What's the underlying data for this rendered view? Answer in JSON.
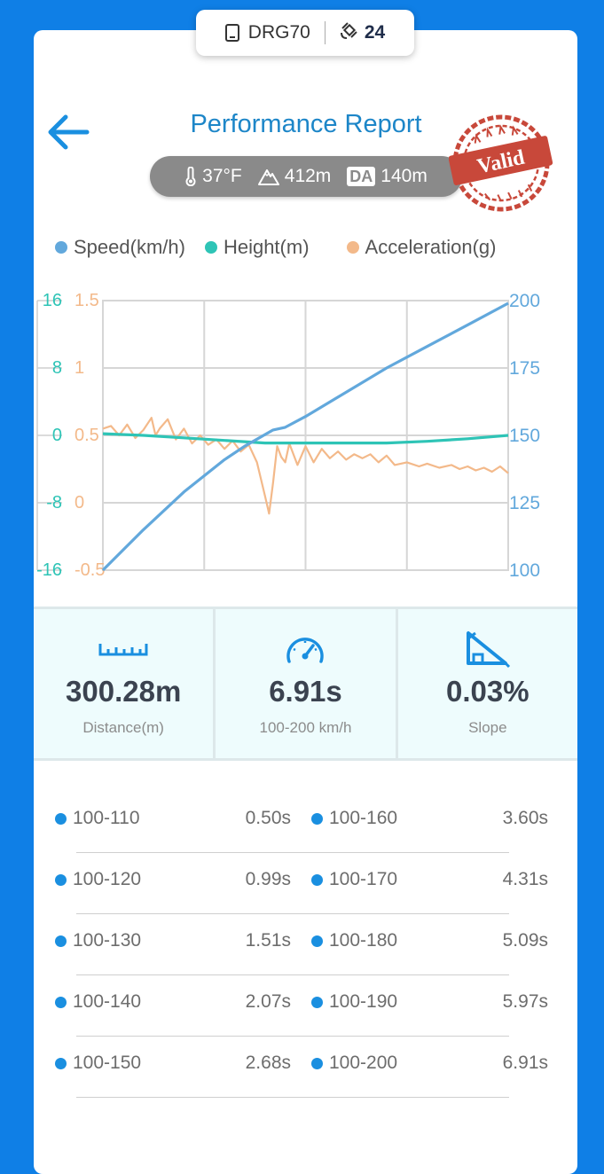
{
  "device": {
    "name": "DRG70",
    "satellites": "24"
  },
  "header": {
    "title": "Performance Report"
  },
  "conditions": {
    "temp": "37°F",
    "altitude": "412m",
    "da_label": "DA",
    "da_value": "140m"
  },
  "stamp": {
    "text": "Valid"
  },
  "colors": {
    "speed": "#62a8dc",
    "height": "#2ec4b6",
    "acceleration": "#f3b98a",
    "accent": "#1a8fe0"
  },
  "chart_data": {
    "type": "line",
    "legend": [
      "Speed(km/h)",
      "Height(m)",
      "Acceleration(g)"
    ],
    "axes": {
      "height_ticks": [
        "16",
        "8",
        "0",
        "-8",
        "-16"
      ],
      "accel_ticks": [
        "1.5",
        "1",
        "0.5",
        "0",
        "-0.5"
      ],
      "speed_ticks": [
        "200",
        "175",
        "150",
        "125",
        "100"
      ],
      "height_range": [
        -16,
        16
      ],
      "accel_range": [
        -0.5,
        1.5
      ],
      "speed_range": [
        100,
        200
      ]
    },
    "grid": true,
    "x_range": [
      0,
      1
    ],
    "series": [
      {
        "name": "Speed(km/h)",
        "axis": "speed",
        "x": [
          0,
          0.1,
          0.2,
          0.3,
          0.35,
          0.42,
          0.45,
          0.5,
          0.6,
          0.7,
          0.8,
          0.9,
          1.0
        ],
        "y": [
          100,
          115,
          129,
          141,
          146,
          152,
          153,
          157,
          166,
          175,
          183,
          191,
          199
        ]
      },
      {
        "name": "Height(m)",
        "axis": "height",
        "x": [
          0,
          0.1,
          0.2,
          0.3,
          0.4,
          0.5,
          0.6,
          0.7,
          0.8,
          0.9,
          1.0
        ],
        "y": [
          0.2,
          0.0,
          -0.3,
          -0.6,
          -0.9,
          -0.9,
          -0.9,
          -0.9,
          -0.7,
          -0.4,
          0.0
        ]
      },
      {
        "name": "Acceleration(g)",
        "axis": "accel",
        "x": [
          0,
          0.02,
          0.04,
          0.06,
          0.08,
          0.1,
          0.12,
          0.13,
          0.14,
          0.16,
          0.18,
          0.2,
          0.22,
          0.24,
          0.26,
          0.28,
          0.3,
          0.32,
          0.34,
          0.36,
          0.38,
          0.4,
          0.41,
          0.42,
          0.43,
          0.44,
          0.45,
          0.46,
          0.48,
          0.5,
          0.52,
          0.54,
          0.56,
          0.58,
          0.6,
          0.62,
          0.64,
          0.66,
          0.68,
          0.7,
          0.72,
          0.75,
          0.78,
          0.8,
          0.83,
          0.86,
          0.88,
          0.9,
          0.92,
          0.94,
          0.96,
          0.98,
          1.0
        ],
        "y": [
          0.55,
          0.57,
          0.5,
          0.58,
          0.48,
          0.54,
          0.63,
          0.5,
          0.55,
          0.62,
          0.47,
          0.55,
          0.44,
          0.5,
          0.43,
          0.47,
          0.4,
          0.46,
          0.38,
          0.43,
          0.3,
          0.05,
          -0.08,
          0.15,
          0.42,
          0.34,
          0.3,
          0.44,
          0.28,
          0.42,
          0.3,
          0.4,
          0.33,
          0.38,
          0.32,
          0.36,
          0.33,
          0.36,
          0.3,
          0.35,
          0.28,
          0.3,
          0.27,
          0.29,
          0.26,
          0.28,
          0.25,
          0.27,
          0.24,
          0.26,
          0.23,
          0.27,
          0.22
        ]
      }
    ]
  },
  "stats": [
    {
      "icon": "ruler-icon",
      "value": "300.28m",
      "label": "Distance(m)"
    },
    {
      "icon": "speedometer-icon",
      "value": "6.91s",
      "label": "100-200 km/h"
    },
    {
      "icon": "slope-icon",
      "value": "0.03%",
      "label": "Slope"
    }
  ],
  "splits": [
    {
      "left_range": "100-110",
      "left_time": "0.50s",
      "right_range": "100-160",
      "right_time": "3.60s"
    },
    {
      "left_range": "100-120",
      "left_time": "0.99s",
      "right_range": "100-170",
      "right_time": "4.31s"
    },
    {
      "left_range": "100-130",
      "left_time": "1.51s",
      "right_range": "100-180",
      "right_time": "5.09s"
    },
    {
      "left_range": "100-140",
      "left_time": "2.07s",
      "right_range": "100-190",
      "right_time": "5.97s"
    },
    {
      "left_range": "100-150",
      "left_time": "2.68s",
      "right_range": "100-200",
      "right_time": "6.91s"
    }
  ]
}
